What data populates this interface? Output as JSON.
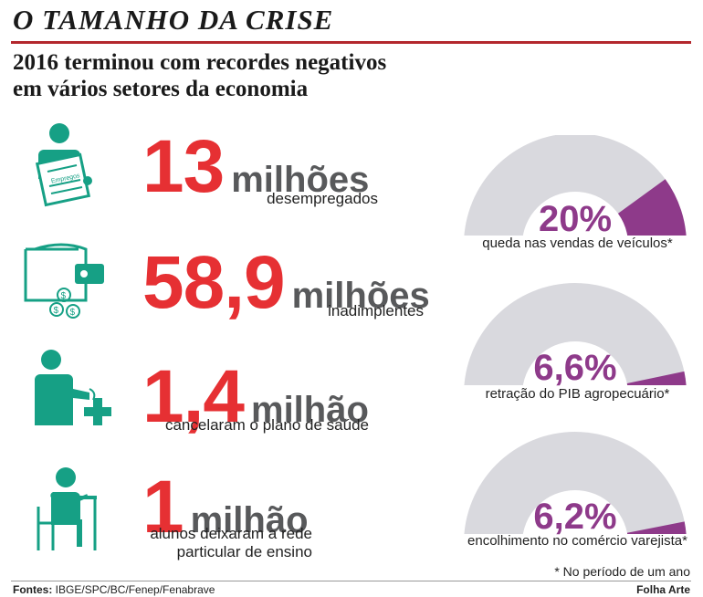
{
  "header": {
    "title": "O TAMANHO DA CRISE",
    "subtitle_line1": "2016 terminou com recordes negativos",
    "subtitle_line2": "em vários setores da economia"
  },
  "stats": [
    {
      "number": "13",
      "unit": "milhões",
      "description": "desempregados",
      "icon": "job-search-person-icon"
    },
    {
      "number": "58,9",
      "unit": "milhões",
      "description": "inadimplentes",
      "icon": "wallet-coins-icon"
    },
    {
      "number": "1,4",
      "unit": "milhão",
      "description": "cancelaram o plano de saúde",
      "icon": "person-health-cross-icon"
    },
    {
      "number": "1",
      "unit": "milhão",
      "description_line1": "alunos deixaram a rede",
      "description_line2": "particular de ensino",
      "icon": "student-desk-icon"
    }
  ],
  "icon_text": {
    "employment_sheet": "Empregos"
  },
  "chart_data": {
    "type": "gauge",
    "gauges": [
      {
        "value": 20,
        "label": "20%",
        "caption": "queda nas vendas de veículos*"
      },
      {
        "value": 6.6,
        "label": "6,6%",
        "caption": "retração do PIB agropecuário*"
      },
      {
        "value": 6.2,
        "label": "6,2%",
        "caption": "encolhimento no comércio varejista*"
      }
    ],
    "max": 100
  },
  "colors": {
    "accent_red": "#e63033",
    "gauge_fill": "#8e3a8a",
    "gauge_track": "#d9d9de",
    "icon_teal": "#16a085"
  },
  "footnote": "* No período de um ano",
  "footer": {
    "sources_label": "Fontes:",
    "sources": " IBGE/SPC/BC/Fenep/Fenabrave",
    "credit": "Folha Arte"
  }
}
